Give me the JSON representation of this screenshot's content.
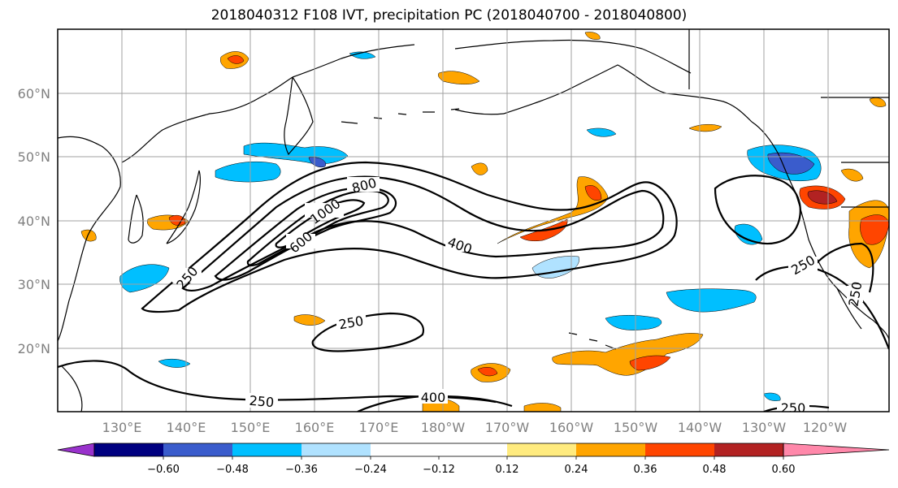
{
  "title": "2018040312 F108 IVT, precipitation PC (2018040700 - 2018040800)",
  "map": {
    "lat_labels": [
      "60°N",
      "50°N",
      "40°N",
      "30°N",
      "20°N"
    ],
    "lon_labels": [
      "130°E",
      "140°E",
      "150°E",
      "160°E",
      "170°E",
      "180°W",
      "170°W",
      "160°W",
      "150°W",
      "140°W",
      "130°W",
      "120°W"
    ],
    "contour_labels": [
      "800",
      "1000",
      "600",
      "400",
      "250",
      "250",
      "250",
      "400",
      "250",
      "250",
      "250"
    ]
  },
  "colorbar": {
    "ticks": [
      "−0.60",
      "−0.48",
      "−0.36",
      "−0.24",
      "−0.12",
      "0.12",
      "0.24",
      "0.36",
      "0.48",
      "0.60"
    ],
    "colors": {
      "under": "#9932CC",
      "bins": [
        "#000080",
        "#3A5CCC",
        "#00BFFF",
        "#B0E2FF",
        "#FFFFFF",
        "#FFEB7F",
        "#FFA500",
        "#FF4500",
        "#B22222"
      ],
      "over": "#FF88AA"
    }
  },
  "colors": {
    "coast": "#000000",
    "grid": "#A0A0A0",
    "contour": "#000000"
  }
}
